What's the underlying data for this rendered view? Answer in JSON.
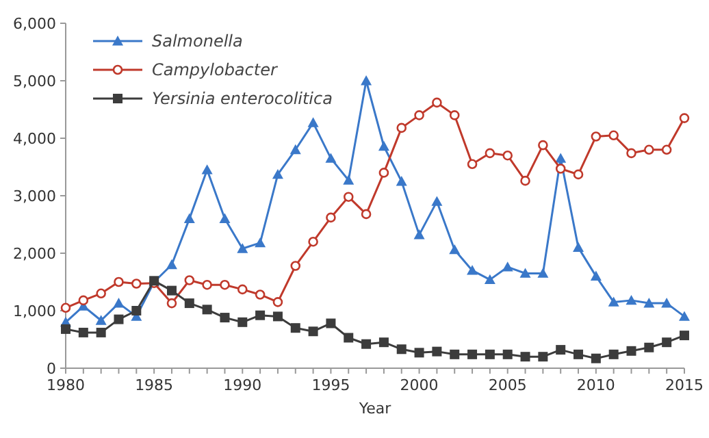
{
  "chart_data": {
    "type": "line",
    "xlabel": "Year",
    "legend": "top left",
    "grid": false,
    "x": [
      1980,
      1981,
      1982,
      1983,
      1984,
      1985,
      1986,
      1987,
      1988,
      1989,
      1990,
      1991,
      1992,
      1993,
      1994,
      1995,
      1996,
      1997,
      1998,
      1999,
      2000,
      2001,
      2002,
      2003,
      2004,
      2005,
      2006,
      2007,
      2008,
      2009,
      2010,
      2011,
      2012,
      2013,
      2014,
      2015
    ],
    "xlim": [
      1980,
      2015
    ],
    "xticks": [
      1980,
      {
        "value": 1981,
        "label": null
      },
      {
        "value": 1982,
        "label": null
      },
      {
        "value": 1983,
        "label": null
      },
      {
        "value": 1984,
        "label": null
      },
      1985,
      {
        "value": 1986,
        "label": null
      },
      {
        "value": 1987,
        "label": null
      },
      {
        "value": 1988,
        "label": null
      },
      {
        "value": 1989,
        "label": null
      },
      1990,
      {
        "value": 1991,
        "label": null
      },
      {
        "value": 1992,
        "label": null
      },
      {
        "value": 1993,
        "label": null
      },
      {
        "value": 1994,
        "label": null
      },
      1995,
      {
        "value": 1996,
        "label": null
      },
      {
        "value": 1997,
        "label": null
      },
      {
        "value": 1998,
        "label": null
      },
      {
        "value": 1999,
        "label": null
      },
      2000,
      {
        "value": 2001,
        "label": null
      },
      {
        "value": 2002,
        "label": null
      },
      {
        "value": 2003,
        "label": null
      },
      {
        "value": 2004,
        "label": null
      },
      2005,
      {
        "value": 2006,
        "label": null
      },
      {
        "value": 2007,
        "label": null
      },
      {
        "value": 2008,
        "label": null
      },
      {
        "value": 2009,
        "label": null
      },
      2010,
      {
        "value": 2011,
        "label": null
      },
      {
        "value": 2012,
        "label": null
      },
      {
        "value": 2013,
        "label": null
      },
      {
        "value": 2014,
        "label": null
      },
      2015
    ],
    "ylim": [
      0,
      6000
    ],
    "yticks": [
      {
        "value": 0,
        "label": "0"
      },
      {
        "value": 1000,
        "label": "1,000"
      },
      {
        "value": 2000,
        "label": "2,000"
      },
      {
        "value": 3000,
        "label": "3,000"
      },
      {
        "value": 4000,
        "label": "4,000"
      },
      {
        "value": 5000,
        "label": "5,000"
      },
      {
        "value": 6000,
        "label": "6,000"
      }
    ],
    "series": [
      {
        "name": "Salmonella",
        "color": "#3a78c9",
        "marker": "triangle",
        "values": [
          800,
          1080,
          830,
          1130,
          900,
          1500,
          1800,
          2600,
          3450,
          2600,
          2080,
          2180,
          3370,
          3800,
          4270,
          3650,
          3270,
          5000,
          3860,
          3250,
          2320,
          2900,
          2060,
          1700,
          1540,
          1760,
          1650,
          1650,
          3650,
          2100,
          1600,
          1150,
          1180,
          1130,
          1130,
          900
        ]
      },
      {
        "name": "Campylobacter",
        "color": "#c0392b",
        "marker": "circle",
        "values": [
          1050,
          1180,
          1300,
          1500,
          1470,
          1480,
          1130,
          1530,
          1450,
          1450,
          1370,
          1280,
          1150,
          1780,
          2200,
          2620,
          2980,
          2680,
          3400,
          4180,
          4400,
          4620,
          4400,
          3550,
          3740,
          3700,
          3260,
          3880,
          3470,
          3370,
          4030,
          4050,
          3740,
          3800,
          3800,
          4350
        ]
      },
      {
        "name": "Yersinia enterocolitica",
        "color": "#3c3c3c",
        "marker": "square",
        "values": [
          680,
          620,
          620,
          850,
          1000,
          1520,
          1350,
          1130,
          1020,
          880,
          800,
          920,
          900,
          700,
          640,
          780,
          530,
          420,
          450,
          330,
          270,
          290,
          240,
          240,
          240,
          240,
          200,
          200,
          320,
          240,
          170,
          240,
          300,
          360,
          450,
          570
        ]
      }
    ]
  }
}
